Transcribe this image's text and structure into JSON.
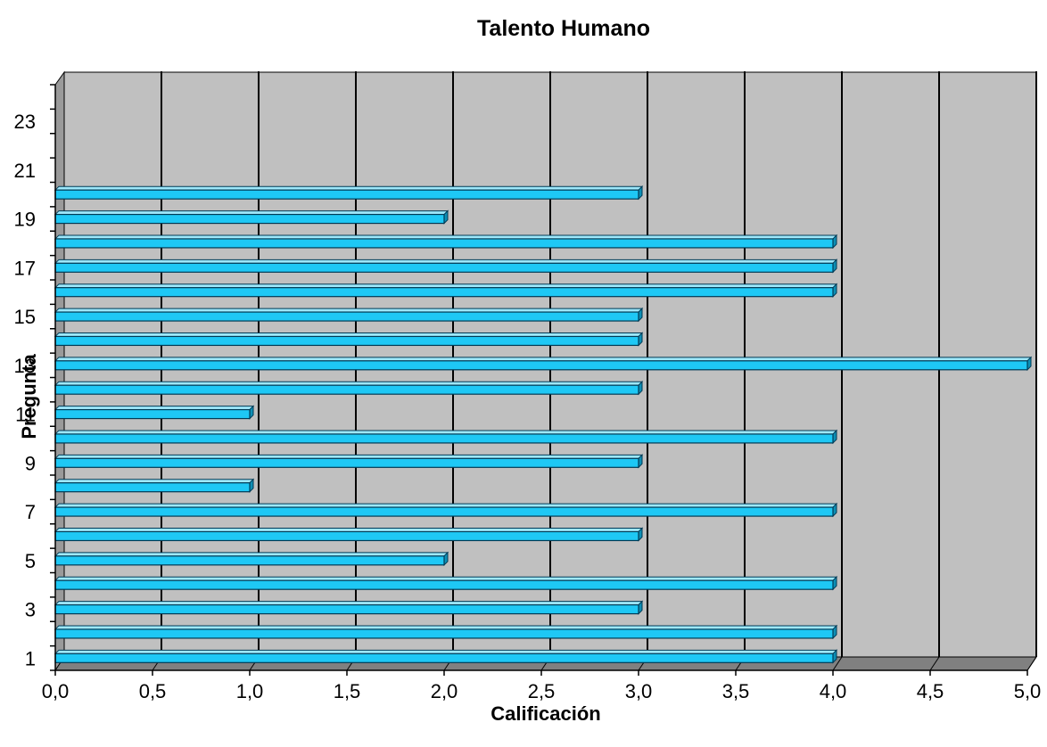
{
  "chart_data": {
    "type": "bar",
    "orientation": "horizontal",
    "three_d": true,
    "title": "Talento Humano",
    "xlabel": "Calificación",
    "ylabel": "Pregunta",
    "xlim": [
      0,
      5
    ],
    "x_ticks": [
      "0,0",
      "0,5",
      "1,0",
      "1,5",
      "2,0",
      "2,5",
      "3,0",
      "3,5",
      "4,0",
      "4,5",
      "5,0"
    ],
    "y_range": [
      1,
      24
    ],
    "y_tick_labels": [
      "1",
      "3",
      "5",
      "7",
      "9",
      "11",
      "13",
      "15",
      "17",
      "19",
      "21",
      "23"
    ],
    "categories": [
      1,
      2,
      3,
      4,
      5,
      6,
      7,
      8,
      9,
      10,
      11,
      12,
      13,
      14,
      15,
      16,
      17,
      18,
      19,
      20
    ],
    "values": [
      4,
      4,
      3,
      4,
      2,
      3,
      4,
      1,
      3,
      4,
      1,
      3,
      5,
      3,
      3,
      4,
      4,
      4,
      2,
      3
    ],
    "grid": true,
    "legend": "none",
    "colors": {
      "bar_face": "#1ec8f5",
      "bar_top": "#9ee8fb",
      "bar_side": "#0d8fb5",
      "bar_edge": "#003a55",
      "wall": "#c0c0c0",
      "floor": "#808080",
      "side_wall": "#9a9a9a",
      "gridline": "#000000"
    }
  }
}
